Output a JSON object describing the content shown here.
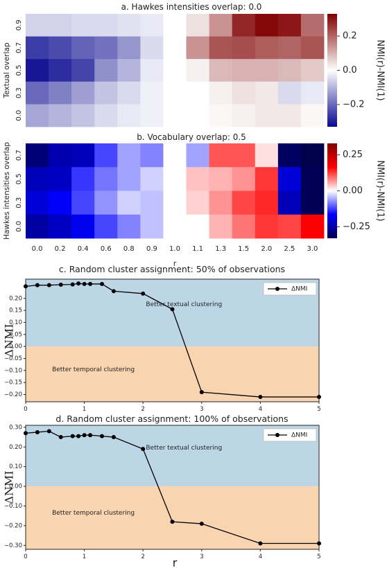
{
  "chart_data": [
    {
      "type": "heatmap",
      "title": "a. Hawkes intensities overlap: 0.0",
      "ylabel": "Textual overlap",
      "colorbar_label": "NMI(r)-NMI(1)",
      "colorbar_ticks": [
        "0.2",
        "0.0",
        "−0.2"
      ],
      "colorbar_tick_values": [
        0.2,
        0.0,
        -0.2
      ],
      "vmin": -0.33,
      "vmax": 0.33,
      "colormap": [
        "#08088f",
        "#ffffff",
        "#7f0000"
      ],
      "x_labels": [
        "0.0",
        "0.2",
        "0.4",
        "0.6",
        "0.8",
        "0.9",
        "1.0",
        "1.1",
        "1.3",
        "1.5",
        "2.0",
        "2.5",
        "3.0"
      ],
      "y_labels": [
        "0.9",
        "0.7",
        "0.5",
        "0.3",
        "0.0"
      ],
      "values": [
        [
          -0.06,
          -0.06,
          -0.05,
          -0.05,
          -0.04,
          -0.03,
          0.0,
          0.04,
          0.14,
          0.28,
          0.32,
          0.3,
          0.19
        ],
        [
          -0.26,
          -0.24,
          -0.21,
          -0.19,
          -0.14,
          -0.05,
          0.0,
          0.14,
          0.22,
          0.23,
          0.21,
          0.2,
          0.22
        ],
        [
          -0.31,
          -0.28,
          -0.25,
          -0.15,
          -0.1,
          -0.03,
          0.0,
          0.02,
          0.09,
          0.1,
          0.1,
          0.09,
          0.07
        ],
        [
          -0.2,
          -0.17,
          -0.13,
          -0.08,
          -0.05,
          -0.02,
          0.0,
          0.0,
          0.02,
          0.04,
          0.03,
          -0.05,
          -0.03
        ],
        [
          -0.12,
          -0.1,
          -0.08,
          -0.05,
          -0.03,
          -0.02,
          0.0,
          0.0,
          0.01,
          0.02,
          0.03,
          0.03,
          0.01
        ]
      ]
    },
    {
      "type": "heatmap",
      "title": "b. Vocabulary overlap: 0.5",
      "ylabel": "Hawkes intensities overlap",
      "xlabel": "r",
      "colorbar_label": "NMI(r)-NMI(1)",
      "colorbar_ticks": [
        "0.25",
        "0.00",
        "−0.25"
      ],
      "colorbar_tick_values": [
        0.25,
        0.0,
        -0.25
      ],
      "vmin": -0.33,
      "vmax": 0.33,
      "colormap": [
        "#00004c",
        "#0000ff",
        "#ffffff",
        "#ff0000",
        "#7f0000"
      ],
      "x_labels": [
        "0.0",
        "0.2",
        "0.4",
        "0.6",
        "0.8",
        "0.9",
        "1.0",
        "1.1",
        "1.3",
        "1.5",
        "2.0",
        "2.5",
        "3.0"
      ],
      "y_labels": [
        "0.7",
        "0.5",
        "0.3",
        "0.0"
      ],
      "values": [
        [
          -0.29,
          -0.24,
          -0.23,
          -0.12,
          -0.06,
          -0.08,
          0.0,
          -0.06,
          0.11,
          0.11,
          0.02,
          -0.31,
          -0.33
        ],
        [
          -0.23,
          -0.22,
          -0.13,
          -0.09,
          -0.06,
          -0.03,
          0.0,
          0.04,
          0.05,
          0.07,
          0.13,
          -0.2,
          -0.32
        ],
        [
          -0.2,
          -0.17,
          -0.12,
          -0.07,
          -0.03,
          -0.04,
          0.0,
          0.03,
          0.07,
          0.12,
          0.14,
          -0.23,
          -0.32
        ],
        [
          -0.25,
          -0.22,
          -0.18,
          -0.12,
          -0.08,
          -0.04,
          0.0,
          0.0,
          0.05,
          0.09,
          0.13,
          0.12,
          0.17
        ]
      ]
    },
    {
      "type": "line",
      "title": "c. Random cluster assignment: 50% of observations",
      "ylabel": "ΔNMI",
      "xlim": [
        0,
        5
      ],
      "ylim": [
        -0.23,
        0.28
      ],
      "x_ticks": [
        0,
        1,
        2,
        3,
        4,
        5
      ],
      "y_ticks": [
        -0.2,
        -0.15,
        -0.1,
        -0.05,
        0.0,
        0.05,
        0.1,
        0.15,
        0.2
      ],
      "grid": false,
      "legend": "top-right",
      "regions": [
        {
          "label": "Better textual clustering",
          "from": 0,
          "to": 0.28,
          "color": "#bcd6e6"
        },
        {
          "label": "Better temporal clustering",
          "from": -0.23,
          "to": 0,
          "color": "#f8d5b0"
        }
      ],
      "series": [
        {
          "name": "ΔNMI",
          "x": [
            0,
            0.2,
            0.4,
            0.6,
            0.8,
            0.9,
            1.0,
            1.1,
            1.3,
            1.5,
            2.0,
            2.5,
            3.0,
            4.0,
            5.0
          ],
          "y": [
            0.25,
            0.255,
            0.255,
            0.257,
            0.258,
            0.262,
            0.26,
            0.26,
            0.26,
            0.23,
            0.22,
            0.155,
            -0.19,
            -0.21,
            -0.21
          ]
        }
      ]
    },
    {
      "type": "line",
      "title": "d. Random cluster assignment: 100% of observations",
      "ylabel": "ΔNMI",
      "xlabel": "r",
      "xlim": [
        0,
        5
      ],
      "ylim": [
        -0.32,
        0.31
      ],
      "x_ticks": [
        0,
        1,
        2,
        3,
        4,
        5
      ],
      "y_ticks": [
        -0.3,
        -0.2,
        -0.1,
        0.0,
        0.1,
        0.2,
        0.3
      ],
      "grid": false,
      "legend": "top-right",
      "regions": [
        {
          "label": "Better textual clustering",
          "from": 0,
          "to": 0.31,
          "color": "#bcd6e6"
        },
        {
          "label": "Better temporal clustering",
          "from": -0.32,
          "to": 0,
          "color": "#f8d5b0"
        }
      ],
      "series": [
        {
          "name": "ΔNMI",
          "x": [
            0,
            0.2,
            0.4,
            0.6,
            0.8,
            0.9,
            1.0,
            1.1,
            1.3,
            1.5,
            2.0,
            2.5,
            3.0,
            4.0,
            5.0
          ],
          "y": [
            0.27,
            0.275,
            0.28,
            0.25,
            0.255,
            0.255,
            0.26,
            0.26,
            0.255,
            0.25,
            0.19,
            -0.18,
            -0.19,
            -0.29,
            -0.29
          ]
        }
      ]
    }
  ]
}
